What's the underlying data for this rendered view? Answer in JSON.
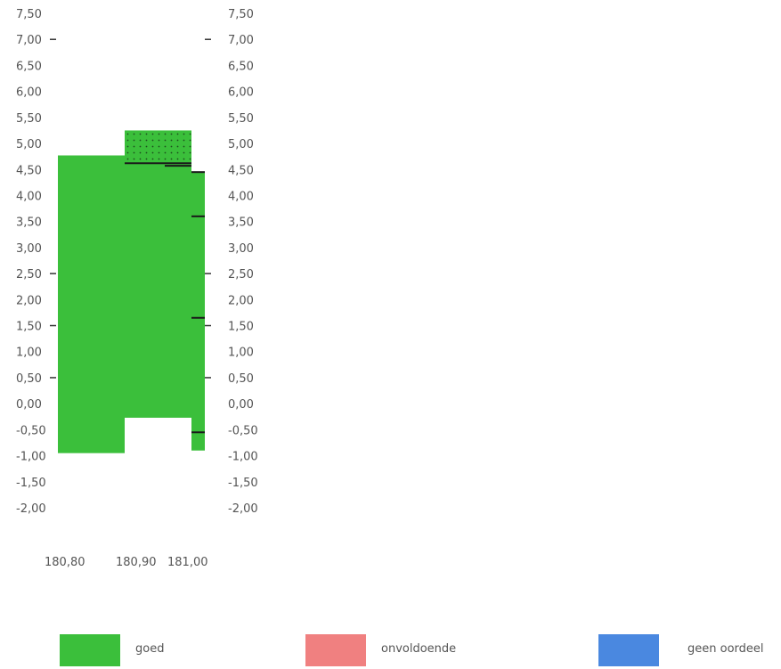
{
  "chart_data": {
    "type": "bar",
    "x_ticks": [
      "180,80",
      "180,90",
      "181,00"
    ],
    "y_ticks_left": [
      "7,50",
      "7,00",
      "6,50",
      "6,00",
      "5,50",
      "5,00",
      "4,50",
      "4,00",
      "3,50",
      "3,00",
      "2,50",
      "2,00",
      "1,50",
      "1,00",
      "0,50",
      "0,00",
      "-0,50",
      "-1,00",
      "-1,50",
      "-2,00"
    ],
    "y_ticks_right": [
      "7,50",
      "7,00",
      "6,50",
      "6,00",
      "5,50",
      "5,00",
      "4,50",
      "4,00",
      "3,50",
      "3,00",
      "2,50",
      "2,00",
      "1,50",
      "1,00",
      "0,50",
      "0,00",
      "-0,50",
      "-1,00",
      "-1,50",
      "-2,00"
    ],
    "ylim": [
      -2.0,
      7.5
    ],
    "xlim": [
      180.78,
      181.02
    ],
    "blocks": [
      {
        "x0": 180.805,
        "x1": 180.905,
        "bottom": -0.95,
        "top": 4.77,
        "category": "goed"
      },
      {
        "x0": 180.905,
        "x1": 181.005,
        "bottom": -0.27,
        "top": 4.62,
        "category": "goed"
      },
      {
        "x0": 181.005,
        "x1": 181.025,
        "bottom": -0.9,
        "top": 4.45,
        "category": "goed"
      },
      {
        "x0": 180.905,
        "x1": 181.005,
        "bottom": 4.62,
        "top": 5.25,
        "category": "goed",
        "pattern": "dotted"
      }
    ],
    "layer_lines": [
      {
        "x0": 180.905,
        "x1": 181.005,
        "y": 4.62
      },
      {
        "x0": 180.965,
        "x1": 181.005,
        "y": 4.57
      },
      {
        "x0": 181.005,
        "x1": 181.025,
        "y": 4.45
      },
      {
        "x0": 181.005,
        "x1": 181.025,
        "y": 3.6
      },
      {
        "x0": 181.005,
        "x1": 181.025,
        "y": 1.65
      },
      {
        "x0": 181.005,
        "x1": 181.025,
        "y": -0.55
      }
    ],
    "left_tick_marks": [
      7.0,
      2.5,
      1.5,
      0.5
    ],
    "right_tick_marks": [
      7.0,
      2.5,
      1.5,
      0.5
    ],
    "colors": {
      "goed": "#3bbf3b",
      "onvoldoende": "#f08080",
      "geen_oordeel": "#4a88e0",
      "axis_text": "#555555"
    },
    "legend_position": "bottom"
  },
  "legend": [
    {
      "label": "goed",
      "color": "#3bbf3b"
    },
    {
      "label": "onvoldoende",
      "color": "#f08080"
    },
    {
      "label": "geen oordeel",
      "color": "#4a88e0"
    }
  ]
}
